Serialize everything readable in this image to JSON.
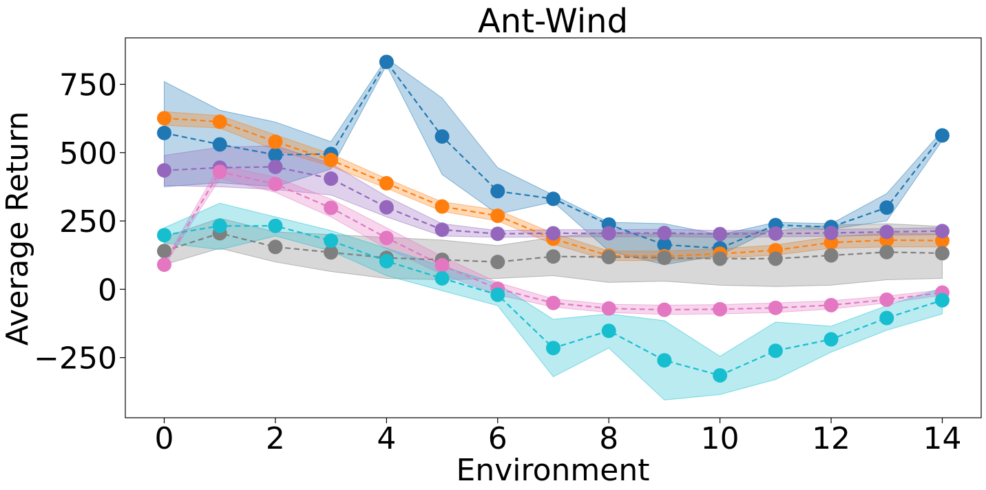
{
  "chart_data": {
    "type": "line",
    "title": "Ant-Wind",
    "xlabel": "Environment",
    "ylabel": "Average Return",
    "xlim": [
      -0.7,
      14.7
    ],
    "ylim": [
      -470,
      920
    ],
    "xticks": [
      0,
      2,
      4,
      6,
      8,
      10,
      12,
      14
    ],
    "xtick_labels": [
      "0",
      "2",
      "4",
      "6",
      "8",
      "10",
      "12",
      "14"
    ],
    "yticks": [
      -250,
      0,
      250,
      500,
      750
    ],
    "ytick_labels": [
      "−250",
      "0",
      "250",
      "500",
      "750"
    ],
    "grid": false,
    "legend": null,
    "x": [
      0,
      1,
      2,
      3,
      4,
      5,
      6,
      7,
      8,
      9,
      10,
      11,
      12,
      13,
      14
    ],
    "series": [
      {
        "name": "blue",
        "color": "#1f77b4",
        "values": [
          572,
          530,
          492,
          495,
          832,
          559,
          359,
          331,
          237,
          163,
          150,
          235,
          228,
          299,
          563
        ],
        "lower": [
          375,
          390,
          375,
          440,
          820,
          420,
          275,
          320,
          140,
          90,
          125,
          225,
          220,
          250,
          545
        ],
        "upper": [
          760,
          655,
          612,
          540,
          845,
          700,
          445,
          345,
          245,
          240,
          200,
          245,
          240,
          350,
          580
        ]
      },
      {
        "name": "orange",
        "color": "#ff7f0e",
        "values": [
          626,
          613,
          540,
          473,
          388,
          303,
          269,
          185,
          123,
          121,
          130,
          143,
          171,
          180,
          178
        ],
        "lower": [
          600,
          590,
          510,
          450,
          370,
          285,
          250,
          165,
          105,
          105,
          115,
          125,
          150,
          155,
          155
        ],
        "upper": [
          650,
          635,
          565,
          495,
          405,
          320,
          290,
          205,
          140,
          140,
          148,
          162,
          192,
          205,
          202
        ]
      },
      {
        "name": "purple",
        "color": "#9467bd",
        "values": [
          435,
          445,
          448,
          405,
          300,
          218,
          203,
          205,
          205,
          206,
          202,
          204,
          206,
          210,
          213
        ],
        "lower": [
          380,
          375,
          365,
          345,
          265,
          195,
          190,
          192,
          192,
          193,
          190,
          192,
          194,
          198,
          200
        ],
        "upper": [
          490,
          520,
          525,
          460,
          340,
          240,
          215,
          218,
          218,
          220,
          215,
          217,
          219,
          222,
          226
        ]
      },
      {
        "name": "gray",
        "color": "#7f7f7f",
        "values": [
          140,
          205,
          155,
          135,
          115,
          108,
          100,
          120,
          118,
          115,
          112,
          112,
          124,
          136,
          132
        ],
        "lower": [
          90,
          150,
          100,
          65,
          40,
          35,
          40,
          50,
          25,
          30,
          15,
          10,
          15,
          35,
          40
        ],
        "upper": [
          190,
          260,
          210,
          200,
          190,
          180,
          160,
          190,
          210,
          200,
          205,
          215,
          235,
          240,
          230
        ]
      },
      {
        "name": "pink",
        "color": "#e377c2",
        "values": [
          90,
          430,
          385,
          298,
          188,
          88,
          2,
          -50,
          -70,
          -75,
          -73,
          -68,
          -58,
          -38,
          -12
        ],
        "lower": [
          85,
          405,
          355,
          265,
          150,
          55,
          -20,
          -65,
          -85,
          -92,
          -90,
          -85,
          -72,
          -50,
          -22
        ],
        "upper": [
          100,
          455,
          410,
          330,
          225,
          120,
          25,
          -35,
          -55,
          -58,
          -56,
          -50,
          -42,
          -25,
          -2
        ]
      },
      {
        "name": "cyan",
        "color": "#17becf",
        "values": [
          198,
          232,
          232,
          178,
          103,
          40,
          -20,
          -215,
          -152,
          -260,
          -315,
          -225,
          -183,
          -105,
          -40
        ],
        "lower": [
          170,
          145,
          195,
          140,
          50,
          -5,
          -60,
          -320,
          -215,
          -405,
          -385,
          -330,
          -230,
          -150,
          -90
        ],
        "upper": [
          225,
          315,
          265,
          215,
          150,
          85,
          20,
          -110,
          -90,
          -115,
          -245,
          -120,
          -135,
          -60,
          5
        ]
      }
    ]
  }
}
